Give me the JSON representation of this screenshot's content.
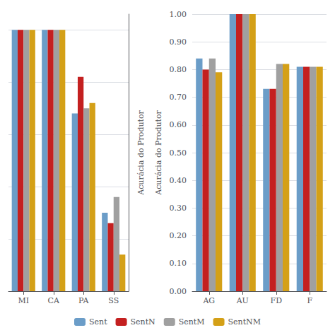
{
  "chart_data": [
    {
      "type": "bar",
      "categories": [
        "MI",
        "CA",
        "PA",
        "SS"
      ],
      "ylabel": "Acurácia do Produtor",
      "series": [
        {
          "name": "Sent",
          "color": "#6B9DC8",
          "values": [
            1.0,
            1.0,
            0.84,
            0.65
          ]
        },
        {
          "name": "SentN",
          "color": "#C42020",
          "values": [
            1.0,
            1.0,
            0.91,
            0.63
          ]
        },
        {
          "name": "SentM",
          "color": "#A0A0A0",
          "values": [
            1.0,
            1.0,
            0.85,
            0.68
          ]
        },
        {
          "name": "SentNM",
          "color": "#D4A017",
          "values": [
            1.0,
            1.0,
            0.86,
            0.57
          ]
        }
      ],
      "ylim": [
        0.5,
        1.03
      ],
      "yticks": [
        0.5,
        0.6,
        0.7,
        0.8,
        0.9,
        1.0
      ],
      "tick_labels": "x",
      "grid": true,
      "legend": "bottom"
    },
    {
      "type": "bar",
      "categories": [
        "AG",
        "AU",
        "FD",
        "F"
      ],
      "ylabel": "Acurácia do Produtor",
      "series": [
        {
          "name": "Sent",
          "color": "#6B9DC8",
          "values": [
            0.84,
            1.0,
            0.73,
            0.81
          ]
        },
        {
          "name": "SentN",
          "color": "#C42020",
          "values": [
            0.8,
            1.0,
            0.73,
            0.81
          ]
        },
        {
          "name": "SentM",
          "color": "#A0A0A0",
          "values": [
            0.84,
            1.0,
            0.82,
            0.81
          ]
        },
        {
          "name": "SentNM",
          "color": "#D4A017",
          "values": [
            0.79,
            1.0,
            0.82,
            0.81
          ]
        }
      ],
      "ylim": [
        0.0,
        1.0
      ],
      "yticks": [
        {
          "value": 0.0,
          "label": "0.00"
        },
        {
          "value": 0.1,
          "label": "0.10"
        },
        {
          "value": 0.2,
          "label": "0.20"
        },
        {
          "value": 0.3,
          "label": "0.30"
        },
        {
          "value": 0.4,
          "label": "0.40"
        },
        {
          "value": 0.5,
          "label": "0.50"
        },
        {
          "value": 0.6,
          "label": "0.60"
        },
        {
          "value": 0.7,
          "label": "0.70"
        },
        {
          "value": 0.8,
          "label": "0.80"
        },
        {
          "value": 0.9,
          "label": "0.90"
        },
        {
          "value": 1.0,
          "label": "1.00"
        }
      ],
      "grid": true,
      "legend": "bottom"
    }
  ]
}
